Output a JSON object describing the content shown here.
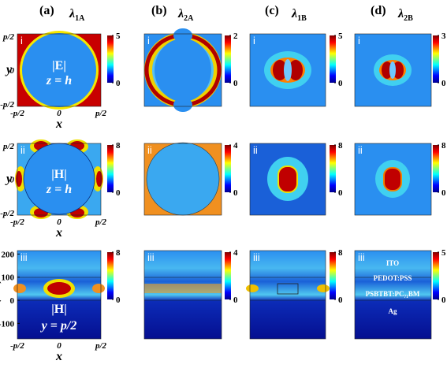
{
  "columns": [
    {
      "label": "(a)",
      "symbol": "λ",
      "subscript": "1A"
    },
    {
      "label": "(b)",
      "symbol": "λ",
      "subscript": "2A"
    },
    {
      "label": "(c)",
      "symbol": "λ",
      "subscript": "1B"
    },
    {
      "label": "(d)",
      "symbol": "λ",
      "subscript": "2B"
    }
  ],
  "rows": [
    {
      "panels": [
        {
          "label": "i",
          "colorbar_ticks": [
            5,
            0
          ]
        },
        {
          "label": "i",
          "colorbar_ticks": [
            2,
            0
          ]
        },
        {
          "label": "i",
          "colorbar_ticks": [
            5,
            0
          ]
        },
        {
          "label": "i",
          "colorbar_ticks": [
            3,
            0
          ]
        }
      ]
    },
    {
      "panels": [
        {
          "label": "ii",
          "colorbar_ticks": [
            8,
            0
          ]
        },
        {
          "label": "ii",
          "colorbar_ticks": [
            4,
            0
          ]
        },
        {
          "label": "ii",
          "colorbar_ticks": [
            8,
            0
          ]
        },
        {
          "label": "ii",
          "colorbar_ticks": [
            8,
            0
          ]
        }
      ]
    },
    {
      "panels": [
        {
          "label": "iii",
          "colorbar_ticks": [
            8,
            0
          ]
        },
        {
          "label": "iii",
          "colorbar_ticks": [
            4,
            0
          ]
        },
        {
          "label": "iii",
          "colorbar_ticks": [
            8,
            0
          ]
        },
        {
          "label": "iii",
          "colorbar_ticks": [
            5,
            0
          ]
        }
      ]
    }
  ],
  "axes": {
    "x_label": "x",
    "y_label": "y",
    "z_label": "z (nm)",
    "x_ticks": [
      "-p/2",
      "0",
      "p/2"
    ],
    "y_ticks": [
      "p/2",
      "0",
      "-p/2"
    ],
    "z_ticks": [
      200,
      100,
      0,
      -100
    ],
    "zlim": [
      -167,
      215
    ]
  },
  "annotations": {
    "a_i": [
      "|E|",
      "z = h"
    ],
    "a_ii": [
      "|H|",
      "z = h"
    ],
    "a_iii": [
      "|H|",
      "y = p/2"
    ],
    "d_iii": [
      "ITO",
      "PEDOT:PSS",
      "PSBTBT:PC₇₁BM",
      "Ag"
    ]
  }
}
